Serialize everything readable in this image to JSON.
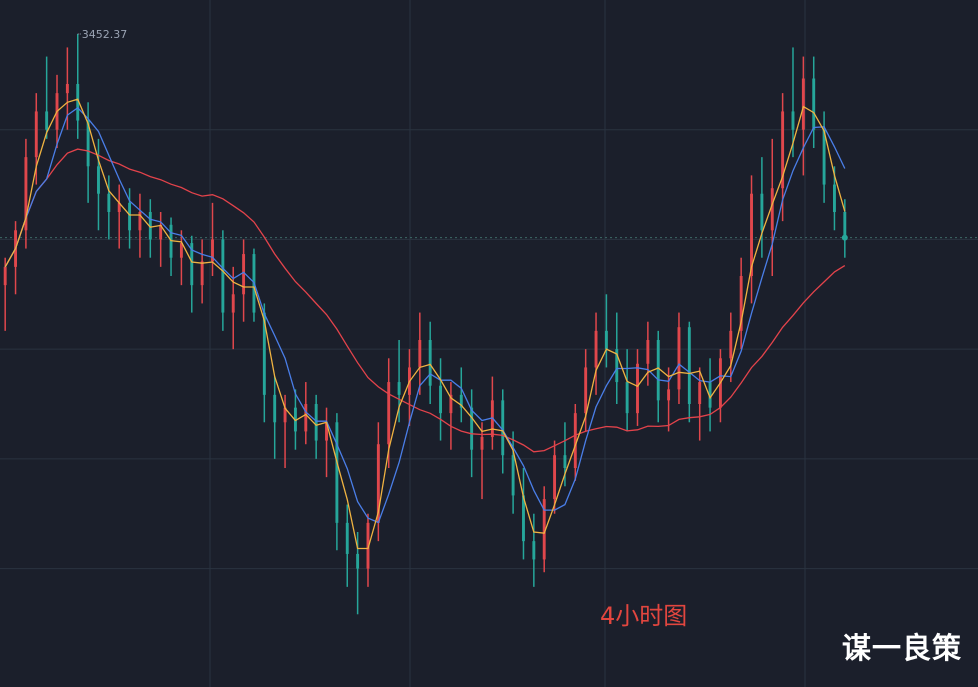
{
  "chart_data": {
    "type": "candlestick",
    "high_label": "3452.37",
    "caption": "4小时图",
    "colors": {
      "up": "#e0474c",
      "down": "#26a69a",
      "ma_fast": "#f0b341",
      "ma_mid": "#4a7ee8",
      "ma_slow": "#e3434b",
      "grid": "#2a3340",
      "last_price_line": "#3c6a66"
    },
    "y_range": [
      3110,
      3460
    ],
    "y_grid": [
      3400,
      3340,
      3280,
      3220,
      3160
    ],
    "last_price": 3341,
    "candles": [
      [
        3315,
        3330,
        3290,
        3325
      ],
      [
        3325,
        3350,
        3310,
        3345
      ],
      [
        3345,
        3395,
        3335,
        3385
      ],
      [
        3385,
        3420,
        3370,
        3410
      ],
      [
        3410,
        3440,
        3395,
        3400
      ],
      [
        3400,
        3430,
        3390,
        3420
      ],
      [
        3420,
        3445,
        3400,
        3425
      ],
      [
        3425,
        3452.37,
        3395,
        3405
      ],
      [
        3405,
        3415,
        3360,
        3380
      ],
      [
        3380,
        3395,
        3345,
        3365
      ],
      [
        3365,
        3375,
        3340,
        3355
      ],
      [
        3355,
        3370,
        3335,
        3360
      ],
      [
        3360,
        3368,
        3335,
        3345
      ],
      [
        3345,
        3365,
        3330,
        3355
      ],
      [
        3355,
        3362,
        3330,
        3340
      ],
      [
        3340,
        3355,
        3325,
        3348
      ],
      [
        3348,
        3352,
        3320,
        3330
      ],
      [
        3330,
        3345,
        3315,
        3338
      ],
      [
        3338,
        3342,
        3300,
        3315
      ],
      [
        3315,
        3340,
        3305,
        3328
      ],
      [
        3328,
        3360,
        3320,
        3340
      ],
      [
        3340,
        3345,
        3290,
        3300
      ],
      [
        3300,
        3325,
        3280,
        3310
      ],
      [
        3310,
        3340,
        3295,
        3332
      ],
      [
        3332,
        3335,
        3295,
        3300
      ],
      [
        3300,
        3305,
        3240,
        3255
      ],
      [
        3255,
        3265,
        3220,
        3240
      ],
      [
        3240,
        3255,
        3215,
        3248
      ],
      [
        3248,
        3258,
        3225,
        3235
      ],
      [
        3235,
        3262,
        3228,
        3250
      ],
      [
        3250,
        3255,
        3220,
        3230
      ],
      [
        3230,
        3248,
        3210,
        3240
      ],
      [
        3240,
        3245,
        3170,
        3185
      ],
      [
        3185,
        3195,
        3150,
        3168
      ],
      [
        3168,
        3180,
        3135,
        3160
      ],
      [
        3160,
        3190,
        3150,
        3185
      ],
      [
        3185,
        3240,
        3175,
        3228
      ],
      [
        3228,
        3275,
        3215,
        3262
      ],
      [
        3262,
        3285,
        3240,
        3255
      ],
      [
        3255,
        3280,
        3238,
        3270
      ],
      [
        3270,
        3300,
        3255,
        3285
      ],
      [
        3285,
        3295,
        3250,
        3260
      ],
      [
        3260,
        3275,
        3230,
        3245
      ],
      [
        3245,
        3262,
        3225,
        3255
      ],
      [
        3255,
        3270,
        3240,
        3248
      ],
      [
        3248,
        3258,
        3210,
        3225
      ],
      [
        3225,
        3240,
        3198,
        3232
      ],
      [
        3232,
        3265,
        3225,
        3252
      ],
      [
        3252,
        3258,
        3212,
        3222
      ],
      [
        3222,
        3235,
        3190,
        3200
      ],
      [
        3200,
        3215,
        3165,
        3175
      ],
      [
        3175,
        3190,
        3150,
        3165
      ],
      [
        3165,
        3205,
        3158,
        3198
      ],
      [
        3198,
        3230,
        3190,
        3222
      ],
      [
        3222,
        3240,
        3205,
        3215
      ],
      [
        3215,
        3250,
        3208,
        3245
      ],
      [
        3245,
        3280,
        3235,
        3270
      ],
      [
        3270,
        3300,
        3255,
        3290
      ],
      [
        3290,
        3310,
        3270,
        3280
      ],
      [
        3280,
        3300,
        3250,
        3262
      ],
      [
        3262,
        3280,
        3235,
        3245
      ],
      [
        3245,
        3280,
        3238,
        3272
      ],
      [
        3272,
        3295,
        3260,
        3285
      ],
      [
        3285,
        3290,
        3240,
        3252
      ],
      [
        3252,
        3270,
        3235,
        3258
      ],
      [
        3258,
        3300,
        3250,
        3292
      ],
      [
        3292,
        3295,
        3240,
        3250
      ],
      [
        3250,
        3270,
        3230,
        3262
      ],
      [
        3262,
        3275,
        3235,
        3248
      ],
      [
        3248,
        3280,
        3240,
        3275
      ],
      [
        3275,
        3300,
        3262,
        3290
      ],
      [
        3290,
        3330,
        3280,
        3320
      ],
      [
        3320,
        3375,
        3305,
        3365
      ],
      [
        3365,
        3385,
        3330,
        3345
      ],
      [
        3345,
        3395,
        3320,
        3368
      ],
      [
        3368,
        3420,
        3350,
        3410
      ],
      [
        3410,
        3445,
        3385,
        3400
      ],
      [
        3400,
        3440,
        3375,
        3428
      ],
      [
        3428,
        3440,
        3390,
        3400
      ],
      [
        3400,
        3410,
        3360,
        3370
      ],
      [
        3370,
        3380,
        3345,
        3355
      ],
      [
        3355,
        3362,
        3330,
        3341
      ]
    ]
  }
}
